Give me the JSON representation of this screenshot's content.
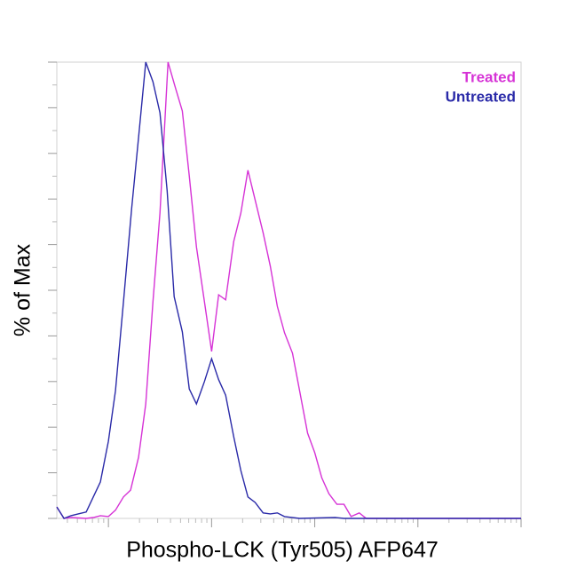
{
  "chart_data": {
    "type": "line",
    "x_label": "Phospho-LCK (Tyr505) AFP647",
    "y_label": "% of Max",
    "xscale": "log",
    "xlim": [
      31.6,
      1000000
    ],
    "xticks": [
      100,
      1000,
      10000,
      100000,
      1000000
    ],
    "ylim": [
      0,
      100
    ],
    "yticks": [
      0,
      10,
      20,
      30,
      40,
      50,
      60,
      70,
      80,
      90,
      100
    ],
    "legend": "top-right",
    "series": [
      {
        "name": "Treated",
        "color": "#d633d6",
        "x": [
          31.6,
          37.1,
          43.4,
          60.9,
          71.3,
          83.6,
          100,
          117,
          140,
          164,
          196,
          230,
          270,
          316,
          378,
          443,
          520,
          608,
          713,
          853,
          1000,
          1170,
          1370,
          1640,
          1920,
          2250,
          2640,
          3160,
          3710,
          4340,
          5090,
          6080,
          7130,
          8530,
          10000,
          11700,
          13700,
          16400,
          19200,
          22500,
          27000,
          31600,
          1000000
        ],
        "values": [
          2.5,
          0,
          0.2,
          0,
          0.2,
          0.6,
          0.4,
          1.8,
          4.7,
          6.2,
          13.4,
          25.1,
          47.5,
          66.9,
          100,
          94.6,
          89.3,
          75.1,
          59.5,
          47.5,
          36.6,
          49,
          47.9,
          60.7,
          66.9,
          76.3,
          69.8,
          62.6,
          55.3,
          46.5,
          40.7,
          36.2,
          28,
          18.7,
          14.4,
          8.9,
          5.4,
          3.1,
          3.1,
          0.4,
          1.2,
          0,
          0
        ]
      },
      {
        "name": "Untreated",
        "color": "#2a2aa8",
        "x": [
          31.6,
          37.1,
          43.4,
          50.9,
          60.9,
          71.3,
          83.6,
          100,
          117,
          140,
          168,
          196,
          230,
          270,
          316,
          371,
          434,
          520,
          608,
          713,
          853,
          1000,
          1170,
          1370,
          1640,
          1920,
          2250,
          2640,
          3160,
          3710,
          4340,
          5090,
          7130,
          15800,
          19200,
          1000000
        ],
        "values": [
          2.5,
          0,
          0.6,
          1,
          1.4,
          4.7,
          8,
          16.9,
          28,
          47.5,
          67.9,
          83.5,
          100,
          95.7,
          88.9,
          71.8,
          48.6,
          40.9,
          28.4,
          25.1,
          30,
          35,
          30.4,
          27,
          17.9,
          10.5,
          4.7,
          3.5,
          1.2,
          1,
          1.2,
          0.4,
          0,
          0.2,
          0,
          0
        ]
      }
    ]
  }
}
